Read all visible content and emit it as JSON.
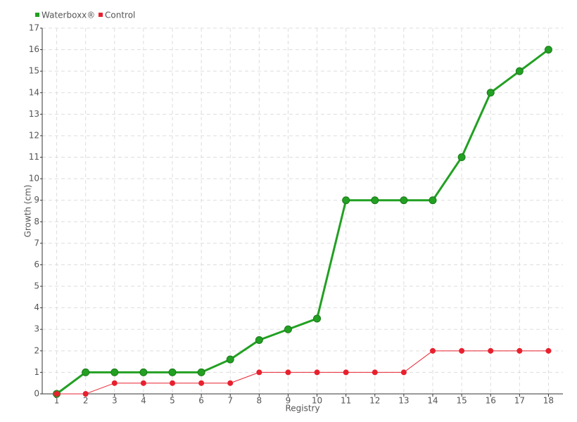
{
  "chart_data": {
    "type": "line",
    "x_label": "Registry",
    "y_label": "Growth (cm)",
    "categories": [
      "1",
      "2",
      "3",
      "4",
      "5",
      "6",
      "7",
      "8",
      "9",
      "10",
      "11",
      "12",
      "13",
      "14",
      "15",
      "16",
      "17",
      "18"
    ],
    "series": [
      {
        "name": "Waterboxx®",
        "color": "#22a022",
        "values": [
          0,
          1,
          1,
          1,
          1,
          1,
          1.6,
          2.5,
          3,
          3.5,
          9,
          9,
          9,
          9,
          11,
          14,
          15,
          16
        ]
      },
      {
        "name": "Control",
        "color": "#e8202e",
        "values": [
          0,
          0,
          0.5,
          0.5,
          0.5,
          0.5,
          0.5,
          1,
          1,
          1,
          1,
          1,
          1,
          2,
          2,
          2,
          2,
          2
        ]
      }
    ],
    "ylim": [
      0,
      17
    ],
    "yticks": [
      0,
      1,
      2,
      3,
      4,
      5,
      6,
      7,
      8,
      9,
      10,
      11,
      12,
      13,
      14,
      15,
      16,
      17
    ],
    "grid": true,
    "legend": "top-left"
  }
}
